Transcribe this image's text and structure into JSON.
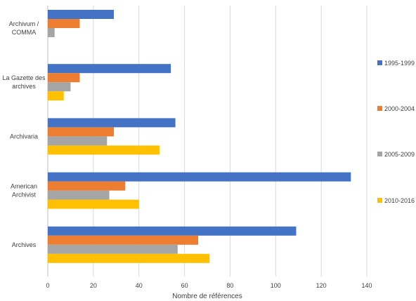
{
  "chart_data": {
    "type": "bar",
    "orientation": "horizontal",
    "categories": [
      [
        "Archivum /",
        "COMMA"
      ],
      [
        "La Gazette des",
        "archives"
      ],
      [
        "Archivaria"
      ],
      [
        "American",
        "Archivist"
      ],
      [
        "Archives"
      ]
    ],
    "series": [
      {
        "name": "1995-1999",
        "color": "#4472c4",
        "values": [
          29,
          54,
          56,
          133,
          109
        ]
      },
      {
        "name": "2000-2004",
        "color": "#ed7d31",
        "values": [
          14,
          14,
          29,
          34,
          66
        ]
      },
      {
        "name": "2005-2009",
        "color": "#a5a5a5",
        "values": [
          3,
          10,
          26,
          27,
          57
        ]
      },
      {
        "name": "2010-2016",
        "color": "#ffc000",
        "values": [
          null,
          7,
          49,
          40,
          71
        ]
      }
    ],
    "xlabel": "Nombre de références",
    "ylabel": "",
    "xlim": [
      0,
      140
    ],
    "xticks": [
      "0",
      "20",
      "40",
      "60",
      "80",
      "100",
      "120",
      "140"
    ],
    "grid": true,
    "legend_position": "right"
  }
}
